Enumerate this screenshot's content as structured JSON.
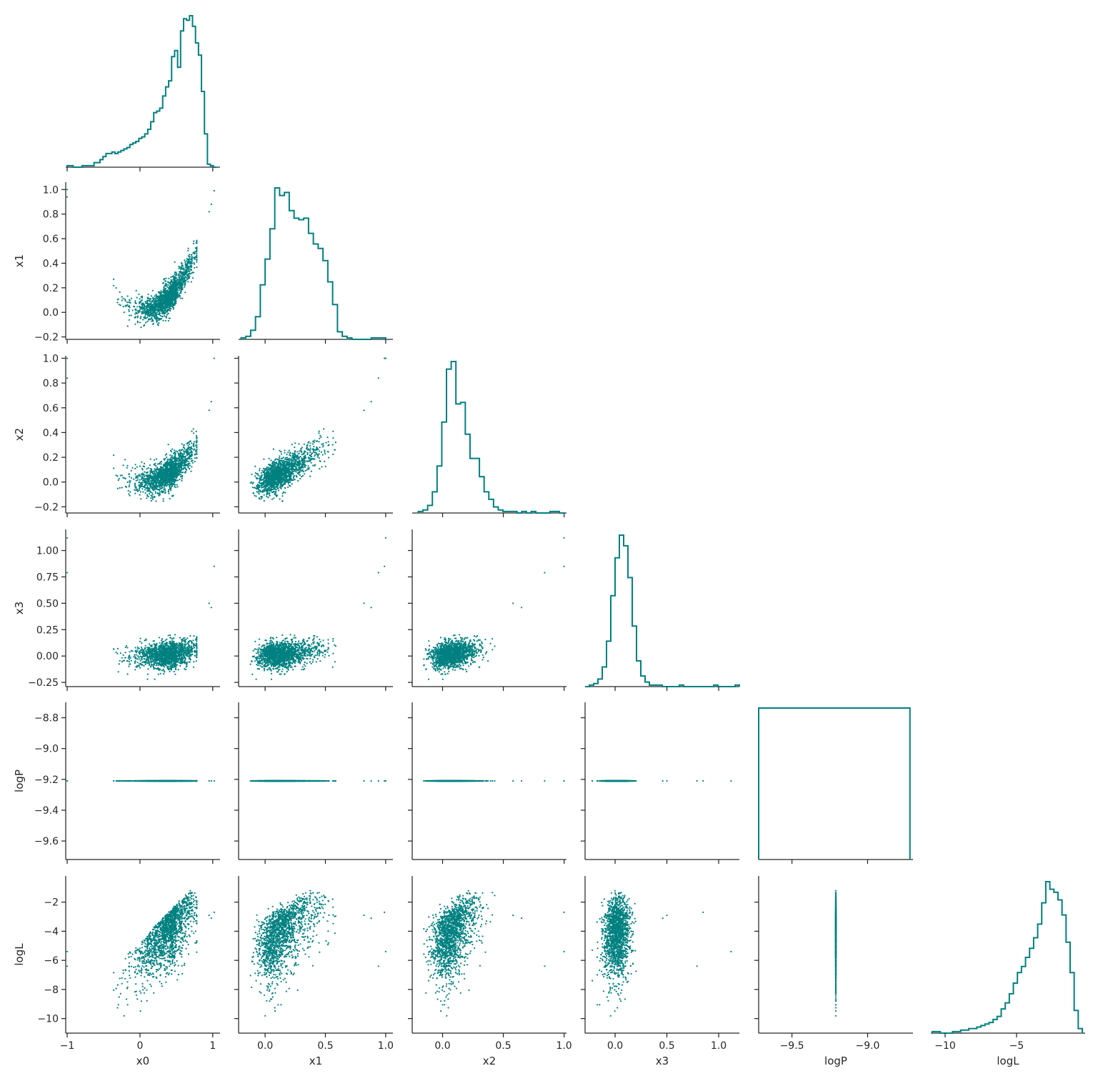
{
  "chart_data": {
    "type": "scatter",
    "kind": "corner-plot",
    "color": "#008080",
    "variables": [
      {
        "name": "x0",
        "range": [
          -1.02,
          1.1
        ],
        "ticks": [
          -1,
          0,
          1
        ]
      },
      {
        "name": "x1",
        "range": [
          -0.22,
          1.06
        ],
        "ticks": [
          -0.2,
          0.0,
          0.2,
          0.4,
          0.6,
          0.8,
          1.0
        ]
      },
      {
        "name": "x2",
        "range": [
          -0.25,
          1.02
        ],
        "ticks": [
          -0.2,
          0.0,
          0.2,
          0.4,
          0.6,
          0.8,
          1.0
        ]
      },
      {
        "name": "x3",
        "range": [
          -0.29,
          1.2
        ],
        "ticks": [
          -0.25,
          0.0,
          0.25,
          0.5,
          0.75,
          1.0
        ]
      },
      {
        "name": "logP",
        "range": [
          -9.72,
          -8.7
        ],
        "ticks": [
          -9.6,
          -9.4,
          -9.2,
          -9.0,
          -8.8
        ]
      },
      {
        "name": "logL",
        "range": [
          -11.0,
          -0.2
        ],
        "ticks": [
          -10,
          -8,
          -6,
          -4,
          -2
        ]
      }
    ],
    "tick_text": {
      "x0": [
        "−1",
        "0",
        "1"
      ],
      "x1": [
        "−0.2",
        "0.0",
        "0.2",
        "0.4",
        "0.6",
        "0.8",
        "1.0"
      ],
      "x2": [
        "−0.2",
        "0.0",
        "0.2",
        "0.4",
        "0.6",
        "0.8",
        "1.0"
      ],
      "x3": [
        "−0.25",
        "0.00",
        "0.25",
        "0.50",
        "0.75",
        "1.00"
      ],
      "logP": [
        "−9.6",
        "−9.4",
        "−9.2",
        "−9.0",
        "−8.8"
      ],
      "logL": [
        "−10",
        "−8",
        "−6",
        "−4",
        "−2"
      ]
    },
    "bottom_ticks": {
      "x0": {
        "values": [
          -1,
          0,
          1
        ],
        "text": [
          "−1",
          "0",
          "1"
        ]
      },
      "x1": {
        "values": [
          0.0,
          0.5,
          1.0
        ],
        "text": [
          "0.0",
          "0.5",
          "1.0"
        ]
      },
      "x2": {
        "values": [
          0.0,
          0.5,
          1.0
        ],
        "text": [
          "0.0",
          "0.5",
          "1.0"
        ]
      },
      "x3": {
        "values": [
          0.0,
          0.5,
          1.0
        ],
        "text": [
          "0.0",
          "0.5",
          "1.0"
        ]
      },
      "logP": {
        "values": [
          -9.5,
          -9.0
        ],
        "text": [
          "−9.5",
          "−9.0"
        ]
      },
      "logL": {
        "values": [
          -10,
          -5
        ],
        "text": [
          "−10",
          "−5"
        ]
      }
    },
    "histograms": {
      "x0": {
        "bins": [
          -1.0,
          1.05
        ],
        "counts_rel": [
          0.01,
          0.01,
          0.0,
          0.0,
          0.0,
          0.01,
          0.01,
          0.01,
          0.01,
          0.03,
          0.03,
          0.05,
          0.07,
          0.09,
          0.09,
          0.1,
          0.09,
          0.1,
          0.11,
          0.12,
          0.13,
          0.15,
          0.16,
          0.17,
          0.19,
          0.2,
          0.22,
          0.25,
          0.3,
          0.36,
          0.37,
          0.39,
          0.47,
          0.53,
          0.57,
          0.73,
          0.77,
          0.66,
          0.9,
          0.98,
          0.97,
          1.0,
          0.93,
          0.82,
          0.74,
          0.5,
          0.22,
          0.02,
          0.01,
          0.0
        ]
      },
      "x1": {
        "bins": [
          -0.2,
          1.0
        ],
        "counts_rel": [
          0.01,
          0.02,
          0.06,
          0.15,
          0.36,
          0.53,
          0.73,
          1.0,
          0.95,
          0.97,
          0.85,
          0.8,
          0.79,
          0.8,
          0.7,
          0.63,
          0.6,
          0.52,
          0.38,
          0.23,
          0.05,
          0.02,
          0.01,
          0.0,
          0.0,
          0.0,
          0.0,
          0.01,
          0.01,
          0.01
        ]
      },
      "x2": {
        "bins": [
          -0.2,
          1.0
        ],
        "counts_rel": [
          0.01,
          0.02,
          0.05,
          0.14,
          0.31,
          0.6,
          0.95,
          1.0,
          0.72,
          0.73,
          0.52,
          0.36,
          0.36,
          0.24,
          0.14,
          0.09,
          0.04,
          0.02,
          0.01,
          0.01,
          0.01,
          0.0,
          0.01,
          0.0,
          0.01,
          0.0,
          0.0,
          0.0,
          0.01,
          0.01,
          0.0
        ]
      },
      "x3": {
        "bins": [
          -0.29,
          1.2
        ],
        "counts_rel": [
          0.0,
          0.01,
          0.02,
          0.05,
          0.13,
          0.3,
          0.6,
          0.85,
          1.0,
          0.93,
          0.72,
          0.4,
          0.17,
          0.07,
          0.03,
          0.01,
          0.01,
          0.01,
          0.0,
          0.0,
          0.0,
          0.0,
          0.01,
          0.0,
          0.0,
          0.0,
          0.0,
          0.0,
          0.0,
          0.0,
          0.01,
          0.0,
          0.0,
          0.0,
          0.0,
          0.01
        ]
      },
      "logP": {
        "bins": [
          -9.72,
          -8.72
        ],
        "counts_rel": [
          1.0
        ]
      },
      "logL": {
        "bins": [
          -10.9,
          -0.4
        ],
        "counts_rel": [
          0.01,
          0.01,
          0.0,
          0.0,
          0.0,
          0.01,
          0.01,
          0.02,
          0.02,
          0.03,
          0.03,
          0.04,
          0.05,
          0.06,
          0.07,
          0.09,
          0.11,
          0.16,
          0.2,
          0.26,
          0.33,
          0.4,
          0.44,
          0.5,
          0.56,
          0.63,
          0.72,
          0.86,
          1.0,
          0.95,
          0.93,
          0.88,
          0.78,
          0.6,
          0.4,
          0.15,
          0.03
        ]
      }
    },
    "samples": 5000,
    "logP_value": -9.21,
    "outliers": [
      {
        "x0": -1.0,
        "x1": 1.0,
        "x2": 1.0,
        "x3": 1.12,
        "logL": -5.4
      },
      {
        "x0": -1.0,
        "x1": 0.94,
        "x2": 0.84,
        "x3": 0.79,
        "logL": -6.4
      },
      {
        "x0": 1.02,
        "x1": 0.99,
        "x2": 1.0,
        "x3": 0.85,
        "logL": -2.7
      },
      {
        "x0": 0.95,
        "x1": 0.82,
        "x2": 0.58,
        "x3": 0.5,
        "logL": -2.9
      },
      {
        "x0": 0.98,
        "x1": 0.88,
        "x2": 0.65,
        "x3": 0.46,
        "logL": -3.1
      }
    ]
  }
}
